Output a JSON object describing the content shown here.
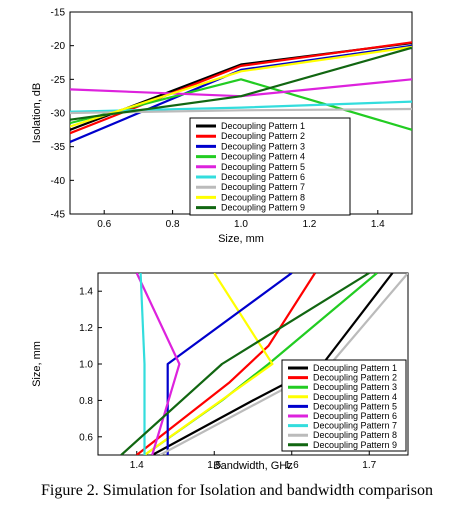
{
  "caption": "Figure 2. Simulation for Isolation  and bandwidth comparison",
  "chart_data": [
    {
      "type": "line",
      "xlabel": "Size, mm",
      "ylabel": "Isolation, dB",
      "xlim": [
        0.5,
        1.5
      ],
      "ylim": [
        -45,
        -15
      ],
      "xticks": [
        "0.6",
        "0.8",
        "1.0",
        "1.2",
        "1.4"
      ],
      "yticks": [
        "-45",
        "-40",
        "-35",
        "-30",
        "-25",
        "-20",
        "-15"
      ],
      "grid": false,
      "legend_position": "bottom-center",
      "series": [
        {
          "name": "Decoupling Pattern 1",
          "color": "#000000",
          "points": [
            [
              0.5,
              -32.5
            ],
            [
              1.0,
              -22.8
            ],
            [
              1.5,
              -19.6
            ]
          ]
        },
        {
          "name": "Decoupling Pattern 2",
          "color": "#ff0000",
          "points": [
            [
              0.5,
              -33.0
            ],
            [
              1.0,
              -23.0
            ],
            [
              1.5,
              -19.5
            ]
          ]
        },
        {
          "name": "Decoupling Pattern 3",
          "color": "#0000cc",
          "points": [
            [
              0.5,
              -34.3
            ],
            [
              1.0,
              -23.6
            ],
            [
              1.5,
              -20.0
            ]
          ]
        },
        {
          "name": "Decoupling Pattern 4",
          "color": "#22cc22",
          "points": [
            [
              0.5,
              -31.5
            ],
            [
              1.0,
              -25.0
            ],
            [
              1.5,
              -32.5
            ]
          ]
        },
        {
          "name": "Decoupling Pattern 5",
          "color": "#dd22dd",
          "points": [
            [
              0.5,
              -26.5
            ],
            [
              1.0,
              -27.5
            ],
            [
              1.5,
              -25.0
            ]
          ]
        },
        {
          "name": "Decoupling Pattern 6",
          "color": "#33dddd",
          "points": [
            [
              0.5,
              -29.8
            ],
            [
              1.0,
              -29.2
            ],
            [
              1.5,
              -28.3
            ]
          ]
        },
        {
          "name": "Decoupling Pattern 7",
          "color": "#bbbbbb",
          "points": [
            [
              0.5,
              -30.0
            ],
            [
              1.0,
              -29.6
            ],
            [
              1.5,
              -29.4
            ]
          ]
        },
        {
          "name": "Decoupling Pattern 8",
          "color": "#ffff00",
          "points": [
            [
              0.5,
              -32.0
            ],
            [
              1.0,
              -23.8
            ],
            [
              1.5,
              -20.2
            ]
          ]
        },
        {
          "name": "Decoupling Pattern 9",
          "color": "#116611",
          "points": [
            [
              0.5,
              -31.0
            ],
            [
              1.0,
              -27.5
            ],
            [
              1.5,
              -20.3
            ]
          ]
        }
      ]
    },
    {
      "type": "line",
      "xlabel": "Bandwidth, GHz",
      "ylabel": "Size, mm",
      "xlim": [
        1.35,
        1.75
      ],
      "ylim": [
        0.5,
        1.5
      ],
      "xticks": [
        "1.4",
        "1.5",
        "1.6",
        "1.7"
      ],
      "yticks": [
        "0.6",
        "0.8",
        "1.0",
        "1.2",
        "1.4"
      ],
      "grid": false,
      "legend_position": "bottom-right",
      "series": [
        {
          "name": "Decoupling Pattern 1",
          "color": "#000000",
          "points": [
            [
              1.42,
              0.5
            ],
            [
              1.55,
              0.8
            ],
            [
              1.64,
              1.0
            ],
            [
              1.73,
              1.5
            ]
          ]
        },
        {
          "name": "Decoupling Pattern 2",
          "color": "#ff0000",
          "points": [
            [
              1.4,
              0.5
            ],
            [
              1.52,
              0.9
            ],
            [
              1.57,
              1.1
            ],
            [
              1.63,
              1.5
            ]
          ]
        },
        {
          "name": "Decoupling Pattern 3",
          "color": "#22cc22",
          "points": [
            [
              1.41,
              0.5
            ],
            [
              1.51,
              0.8
            ],
            [
              1.57,
              1.0
            ],
            [
              1.71,
              1.5
            ]
          ]
        },
        {
          "name": "Decoupling Pattern 4",
          "color": "#ffff00",
          "points": [
            [
              1.5,
              1.5
            ],
            [
              1.575,
              1.0
            ],
            [
              1.41,
              0.5
            ]
          ]
        },
        {
          "name": "Decoupling Pattern 5",
          "color": "#0000cc",
          "points": [
            [
              1.44,
              0.5
            ],
            [
              1.44,
              1.0
            ],
            [
              1.6,
              1.5
            ]
          ]
        },
        {
          "name": "Decoupling Pattern 6",
          "color": "#dd22dd",
          "points": [
            [
              1.4,
              1.5
            ],
            [
              1.455,
              1.0
            ],
            [
              1.42,
              0.5
            ]
          ]
        },
        {
          "name": "Decoupling Pattern 7",
          "color": "#33dddd",
          "points": [
            [
              1.405,
              1.5
            ],
            [
              1.41,
              1.0
            ],
            [
              1.41,
              0.5
            ]
          ]
        },
        {
          "name": "Decoupling Pattern 8",
          "color": "#bbbbbb",
          "points": [
            [
              1.43,
              0.5
            ],
            [
              1.65,
              1.0
            ],
            [
              1.75,
              1.5
            ]
          ]
        },
        {
          "name": "Decoupling Pattern 9",
          "color": "#116611",
          "points": [
            [
              1.38,
              0.5
            ],
            [
              1.51,
              1.0
            ],
            [
              1.7,
              1.5
            ]
          ]
        }
      ]
    }
  ]
}
